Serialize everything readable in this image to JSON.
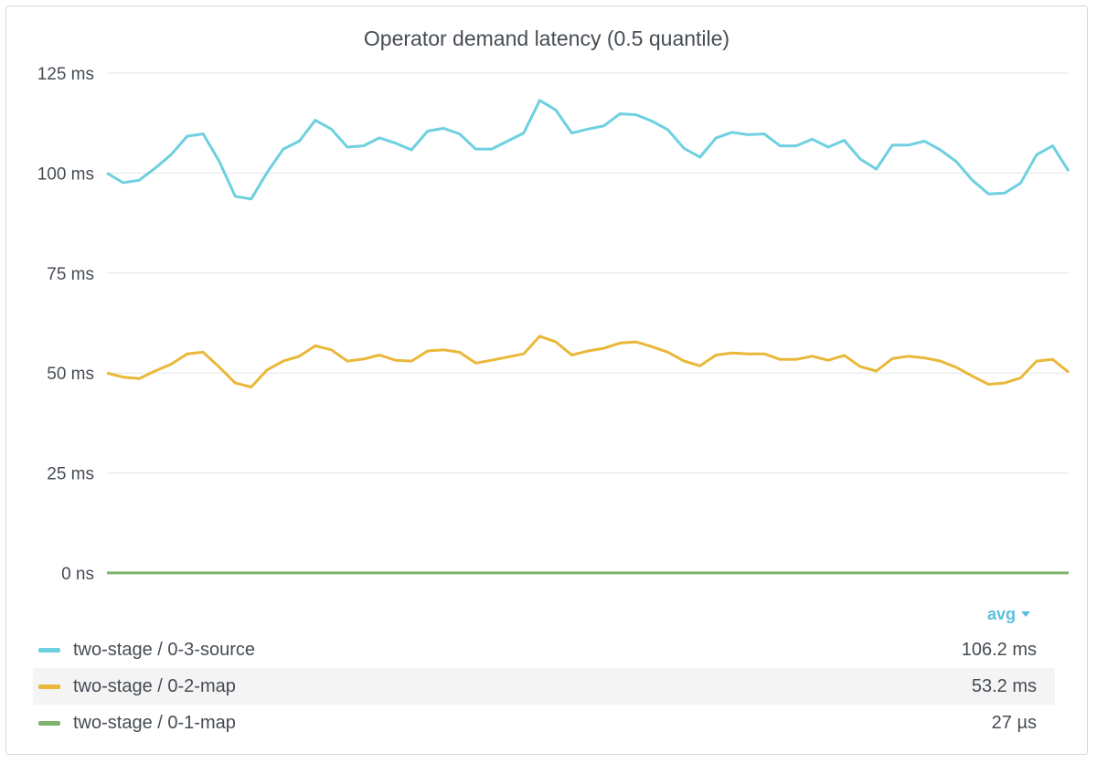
{
  "panel": {
    "title": "Operator demand latency (0.5 quantile)"
  },
  "legend": {
    "sort_label": "avg",
    "items": [
      {
        "name": "two-stage / 0-3-source",
        "value": "106.2 ms",
        "color": "#6ed0e0"
      },
      {
        "name": "two-stage / 0-2-map",
        "value": "53.2 ms",
        "color": "#eab839"
      },
      {
        "name": "two-stage / 0-1-map",
        "value": "27 µs",
        "color": "#7eb26d"
      }
    ]
  },
  "chart_data": {
    "type": "line",
    "title": "Operator demand latency (0.5 quantile)",
    "y_unit": "ms",
    "ylim": [
      0,
      125
    ],
    "y_ticks": [
      0,
      25,
      50,
      75,
      100,
      125
    ],
    "y_tick_labels": [
      "0 ns",
      "25 ms",
      "50 ms",
      "75 ms",
      "100 ms",
      "125 ms"
    ],
    "grid": true,
    "legend_position": "bottom",
    "series": [
      {
        "name": "two-stage / 0-3-source",
        "color": "#6ed0e0",
        "values": [
          100.0,
          97.6,
          98.2,
          101.2,
          104.6,
          109.2,
          109.8,
          103.0,
          94.2,
          93.5,
          100.2,
          106.0,
          108.0,
          113.2,
          111.0,
          106.5,
          106.8,
          108.8,
          107.5,
          105.8,
          110.5,
          111.2,
          109.8,
          106.0,
          106.0,
          108.0,
          110.0,
          118.2,
          115.8,
          110.0,
          111.0,
          111.8,
          114.8,
          114.6,
          113.0,
          110.8,
          106.2,
          104.0,
          108.8,
          110.2,
          109.6,
          109.8,
          106.8,
          106.8,
          108.5,
          106.5,
          108.2,
          103.5,
          101.0,
          107.0,
          107.0,
          108.0,
          105.8,
          102.8,
          98.2,
          94.8,
          95.0,
          97.5,
          104.6,
          106.8,
          100.5
        ],
        "avg": "106.2 ms"
      },
      {
        "name": "two-stage / 0-2-map",
        "color": "#eab839",
        "values": [
          50.0,
          49.0,
          48.6,
          50.5,
          52.2,
          54.8,
          55.2,
          51.5,
          47.5,
          46.5,
          50.8,
          53.0,
          54.2,
          56.8,
          55.8,
          53.0,
          53.5,
          54.5,
          53.2,
          53.0,
          55.5,
          55.8,
          55.2,
          52.5,
          53.2,
          54.0,
          54.8,
          59.2,
          57.8,
          54.5,
          55.5,
          56.2,
          57.5,
          57.8,
          56.6,
          55.2,
          53.0,
          51.8,
          54.5,
          55.0,
          54.8,
          54.8,
          53.4,
          53.4,
          54.2,
          53.2,
          54.4,
          51.6,
          50.5,
          53.6,
          54.2,
          53.8,
          53.0,
          51.4,
          49.2,
          47.2,
          47.5,
          48.8,
          53.0,
          53.4,
          50.2
        ],
        "avg": "53.2 ms"
      },
      {
        "name": "two-stage / 0-1-map",
        "color": "#7eb26d",
        "values": [
          0.03,
          0.03,
          0.03,
          0.03,
          0.03,
          0.03,
          0.03,
          0.03,
          0.03,
          0.027,
          0.027,
          0.027,
          0.027,
          0.027,
          0.027,
          0.027,
          0.027,
          0.027,
          0.027,
          0.027,
          0.027,
          0.027,
          0.027,
          0.027,
          0.027,
          0.027,
          0.027,
          0.027,
          0.027,
          0.027,
          0.027,
          0.027,
          0.027,
          0.027,
          0.027,
          0.027,
          0.027,
          0.027,
          0.027,
          0.027,
          0.027,
          0.027,
          0.027,
          0.027,
          0.027,
          0.027,
          0.027,
          0.027,
          0.027,
          0.027,
          0.027,
          0.027,
          0.027,
          0.027,
          0.027,
          0.027,
          0.027,
          0.027,
          0.027,
          0.027,
          0.027
        ],
        "avg": "27 µs"
      }
    ]
  }
}
